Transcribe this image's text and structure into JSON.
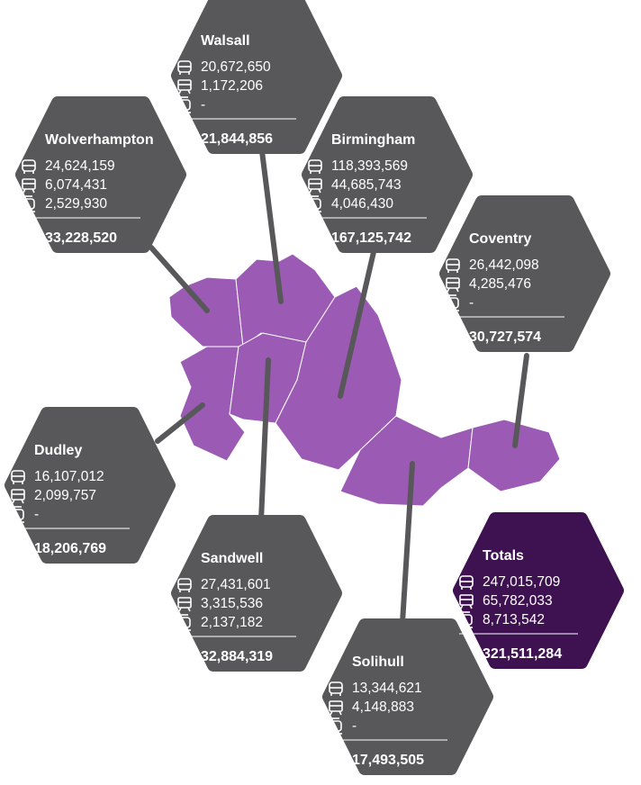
{
  "regions": [
    {
      "name": "Walsall",
      "bus": "20,672,650",
      "rail": "1,172,206",
      "metro": "-",
      "total": "21,844,856"
    },
    {
      "name": "Wolverhampton",
      "bus": "24,624,159",
      "rail": "6,074,431",
      "metro": "2,529,930",
      "total": "33,228,520"
    },
    {
      "name": "Birmingham",
      "bus": "118,393,569",
      "rail": "44,685,743",
      "metro": "4,046,430",
      "total": "167,125,742"
    },
    {
      "name": "Coventry",
      "bus": "26,442,098",
      "rail": "4,285,476",
      "metro": "-",
      "total": "30,727,574"
    },
    {
      "name": "Dudley",
      "bus": "16,107,012",
      "rail": "2,099,757",
      "metro": "-",
      "total": "18,206,769"
    },
    {
      "name": "Sandwell",
      "bus": "27,431,601",
      "rail": "3,315,536",
      "metro": "2,137,182",
      "total": "32,884,319"
    },
    {
      "name": "Solihull",
      "bus": "13,344,621",
      "rail": "4,148,883",
      "metro": "-",
      "total": "17,493,505"
    },
    {
      "name": "Totals",
      "bus": "247,015,709",
      "rail": "65,782,033",
      "metro": "8,713,542",
      "total": "321,511,284"
    }
  ]
}
